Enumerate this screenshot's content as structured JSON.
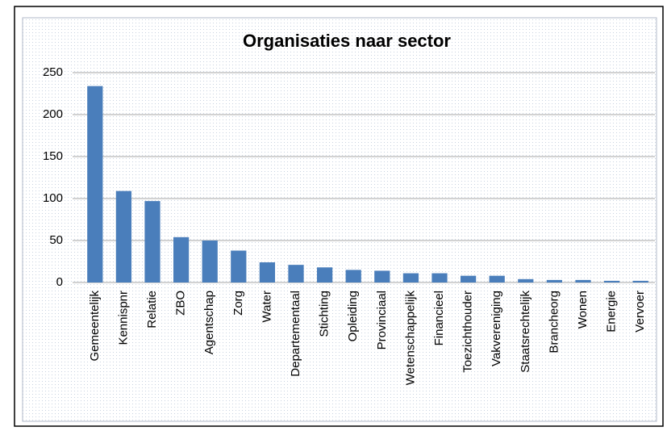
{
  "chart_data": {
    "type": "bar",
    "title": "Organisaties naar sector",
    "categories": [
      "Gemeentelijk",
      "Kennispnr",
      "Relatie",
      "ZBO",
      "Agentschap",
      "Zorg",
      "Water",
      "Departementaal",
      "Stichting",
      "Opleiding",
      "Provinciaal",
      "Wetenschappelijk",
      "Financieel",
      "Toezichthouder",
      "Vakvereniging",
      "Staatsrechtelijk",
      "Brancheorg",
      "Wonen",
      "Energie",
      "Vervoer"
    ],
    "values": [
      234,
      109,
      97,
      54,
      50,
      38,
      24,
      21,
      18,
      15,
      14,
      11,
      11,
      8,
      8,
      4,
      3,
      3,
      2,
      2
    ],
    "color": "#4a7ebb",
    "ylim": [
      0,
      250
    ],
    "yticks": [
      0,
      50,
      100,
      150,
      200,
      250
    ],
    "grid": true
  }
}
